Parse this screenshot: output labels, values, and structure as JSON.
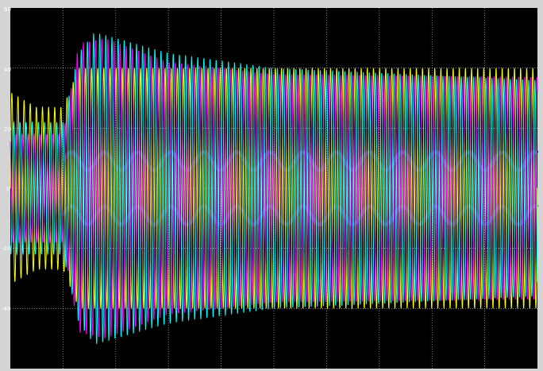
{
  "chart_data": {
    "type": "line",
    "title": "",
    "xlabel": "",
    "ylabel": "",
    "ylim": [
      -60,
      60
    ],
    "yticks": [
      -40,
      -20,
      0,
      20,
      40
    ],
    "ytick_labels": [
      "-40",
      "-20",
      "0",
      "20",
      "40"
    ],
    "y_top_label": "60",
    "grid": true,
    "legend": "none",
    "background": "#000000",
    "grid_color": "#ffffff",
    "series": [
      {
        "color": "#ffff00",
        "envelope": [
          [
            0,
            32
          ],
          [
            0.05,
            27
          ],
          [
            0.1,
            27
          ],
          [
            0.13,
            40
          ],
          [
            0.2,
            40
          ],
          [
            1,
            40
          ]
        ],
        "cycles": 17,
        "phase": 0
      },
      {
        "color": "#ff00ff",
        "envelope": [
          [
            0,
            18
          ],
          [
            0.1,
            18
          ],
          [
            0.13,
            48
          ],
          [
            0.18,
            50
          ],
          [
            0.3,
            42
          ],
          [
            0.5,
            38
          ],
          [
            1,
            37
          ]
        ],
        "cycles": 17,
        "phase": 2.094
      },
      {
        "color": "#00ffff",
        "envelope": [
          [
            0,
            22
          ],
          [
            0.1,
            22
          ],
          [
            0.13,
            45
          ],
          [
            0.16,
            52
          ],
          [
            0.3,
            45
          ],
          [
            0.5,
            40
          ],
          [
            1,
            36
          ]
        ],
        "cycles": 17,
        "phase": 4.189
      }
    ],
    "secondary_band": {
      "color": "#1c2a6a",
      "level": 9
    }
  }
}
